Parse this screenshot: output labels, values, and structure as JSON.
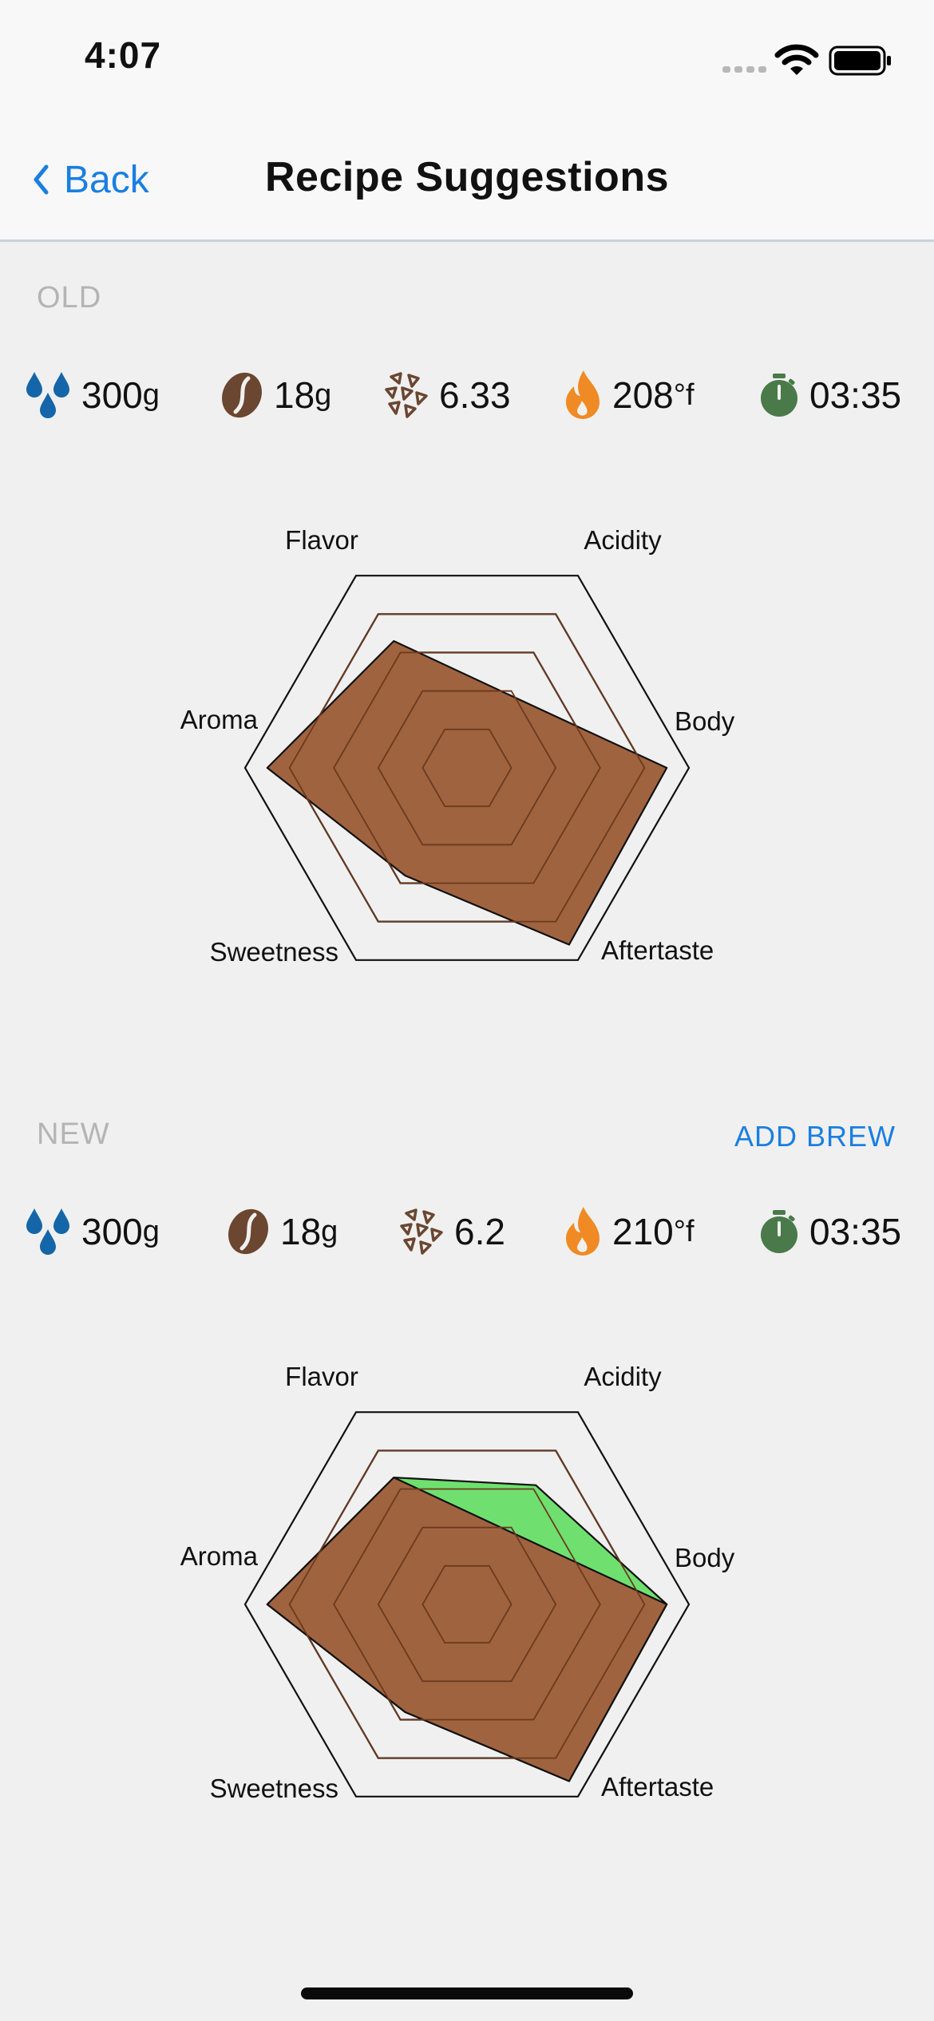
{
  "status_bar": {
    "time": "4:07"
  },
  "nav": {
    "back_label": "Back",
    "title": "Recipe Suggestions"
  },
  "old": {
    "label": "OLD",
    "stats": {
      "water": {
        "value": "300",
        "unit": "g",
        "icon": "water-drops-icon"
      },
      "coffee": {
        "value": "18",
        "unit": "g",
        "icon": "coffee-bean-icon"
      },
      "grind": {
        "value": "6.33",
        "icon": "grind-icon"
      },
      "temperature": {
        "value": "208",
        "unit": "°f",
        "icon": "flame-icon"
      },
      "time": {
        "value": "03:35",
        "icon": "timer-icon"
      }
    }
  },
  "new": {
    "label": "NEW",
    "add_brew_label": "ADD BREW",
    "stats": {
      "water": {
        "value": "300",
        "unit": "g",
        "icon": "water-drops-icon"
      },
      "coffee": {
        "value": "18",
        "unit": "g",
        "icon": "coffee-bean-icon"
      },
      "grind": {
        "value": "6.2",
        "icon": "grind-icon"
      },
      "temperature": {
        "value": "210",
        "unit": "°f",
        "icon": "flame-icon"
      },
      "time": {
        "value": "03:35",
        "icon": "timer-icon"
      }
    }
  },
  "colors": {
    "accent": "#1a7fe0",
    "brown_fill": "#a0633f",
    "green_fill": "#6fe06f",
    "water": "#1466a8",
    "bean": "#6b4630",
    "flame": "#f08a24",
    "timer": "#4a7a4a"
  },
  "chart_data": [
    {
      "type": "radar",
      "axes": [
        "Flavor",
        "Acidity",
        "Body",
        "Aftertaste",
        "Sweetness",
        "Aroma"
      ],
      "rmax": 5,
      "series": [
        {
          "values": [
            3.3,
            1.9,
            4.5,
            4.6,
            2.8,
            4.5
          ],
          "color": "#a0633f"
        }
      ]
    },
    {
      "type": "radar",
      "axes": [
        "Flavor",
        "Acidity",
        "Body",
        "Aftertaste",
        "Sweetness",
        "Aroma"
      ],
      "rmax": 5,
      "series": [
        {
          "values": [
            3.3,
            3.1,
            4.5,
            4.6,
            2.8,
            4.5
          ],
          "color": "#6fe06f"
        },
        {
          "values": [
            3.3,
            1.9,
            4.5,
            4.6,
            2.8,
            4.5
          ],
          "color": "#a0633f"
        }
      ]
    }
  ]
}
